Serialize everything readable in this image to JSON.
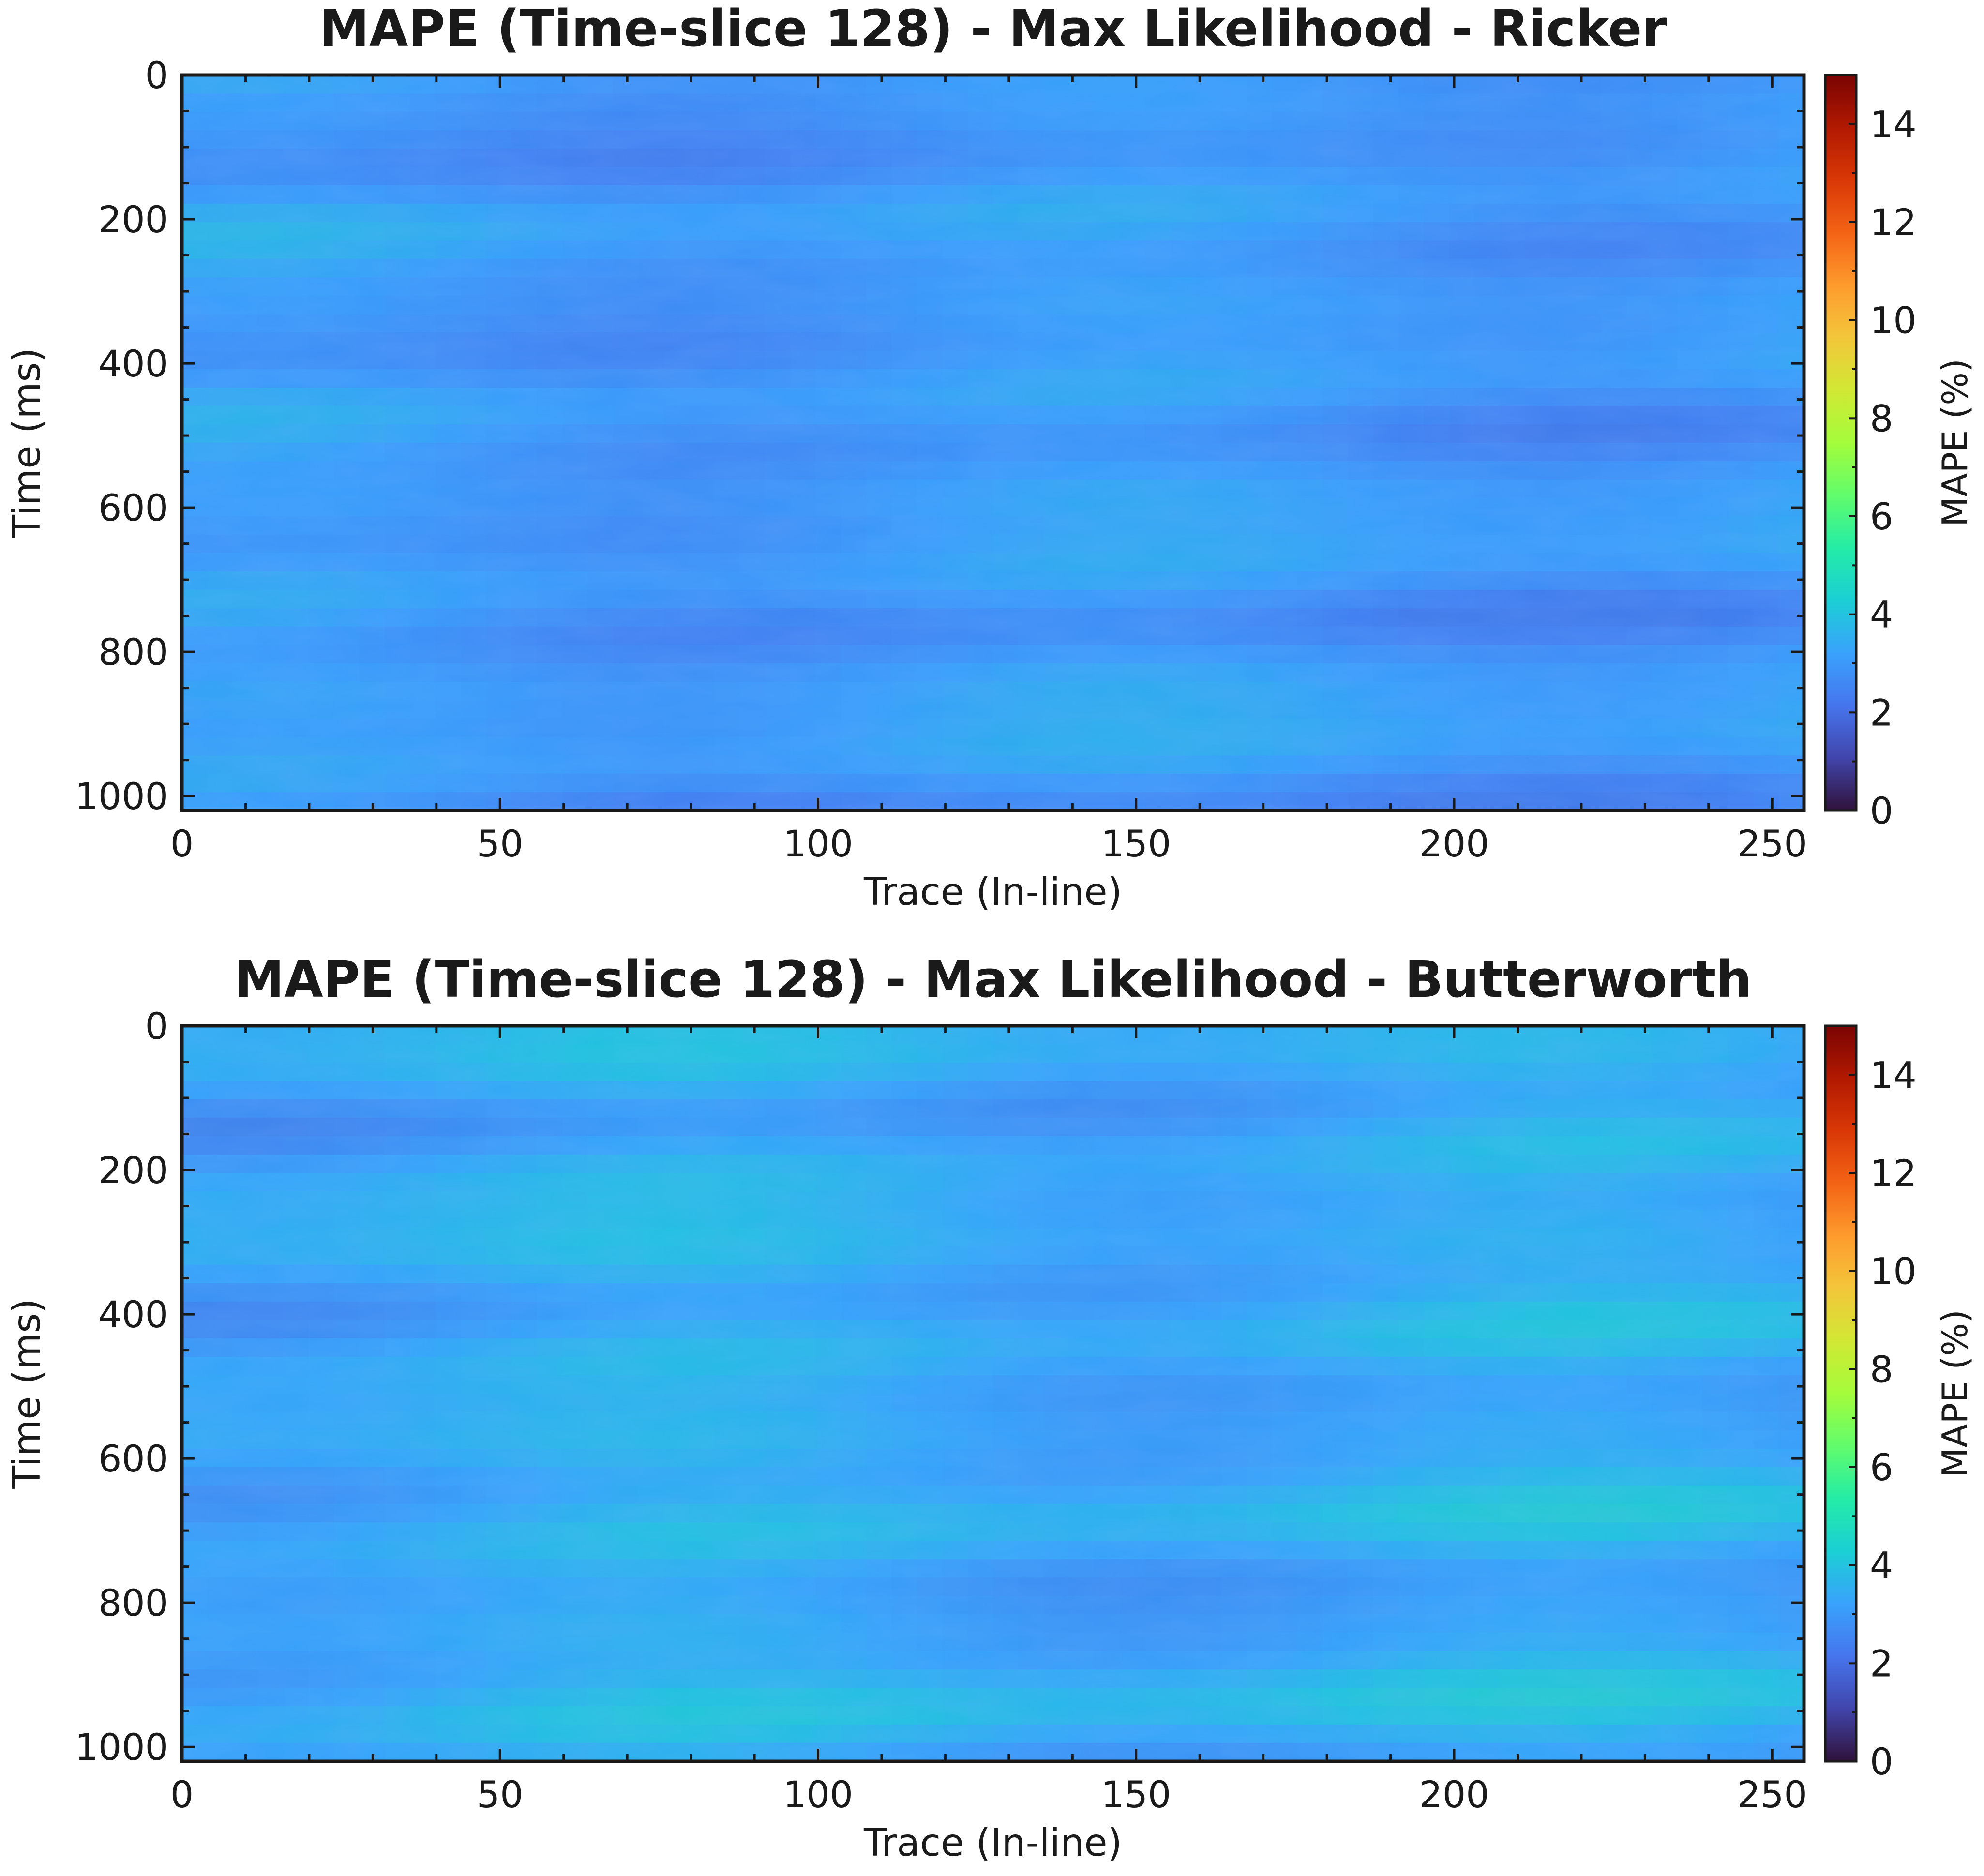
{
  "chart_data": [
    {
      "type": "heatmap",
      "title": "MAPE (Time-slice 128) - Max Likelihood - Ricker",
      "xlabel": "Trace (In-line)",
      "ylabel": "Time (ms)",
      "xlim": [
        0,
        255
      ],
      "ylim": [
        1020,
        0
      ],
      "x_ticks": [
        "0",
        "50",
        "100",
        "150",
        "200",
        "250"
      ],
      "y_ticks": [
        "0",
        "200",
        "400",
        "600",
        "800",
        "1000"
      ],
      "colorbar": {
        "label": "MAPE (%)",
        "range": [
          0,
          15
        ],
        "ticks": [
          "0",
          "2",
          "4",
          "6",
          "8",
          "10",
          "12",
          "14"
        ],
        "colormap": "turbo"
      },
      "value_summary": {
        "min": 2,
        "max": 5,
        "typical": 3
      }
    },
    {
      "type": "heatmap",
      "title": "MAPE (Time-slice 128) - Max Likelihood - Butterworth",
      "xlabel": "Trace (In-line)",
      "ylabel": "Time (ms)",
      "xlim": [
        0,
        255
      ],
      "ylim": [
        1020,
        0
      ],
      "x_ticks": [
        "0",
        "50",
        "100",
        "150",
        "200",
        "250"
      ],
      "y_ticks": [
        "0",
        "200",
        "400",
        "600",
        "800",
        "1000"
      ],
      "colorbar": {
        "label": "MAPE (%)",
        "range": [
          0,
          15
        ],
        "ticks": [
          "0",
          "2",
          "4",
          "6",
          "8",
          "10",
          "12",
          "14"
        ],
        "colormap": "turbo"
      },
      "value_summary": {
        "min": 2,
        "max": 5.5,
        "typical": 3.4
      }
    }
  ],
  "colors": {
    "frame": "#1a1a1a",
    "text": "#1a1a1a",
    "colormap_stops": [
      "#30123b",
      "#4145ab",
      "#4675ed",
      "#39a2fc",
      "#1bcfd4",
      "#24eca6",
      "#61fc6c",
      "#a4fc3b",
      "#d1e834",
      "#f3c63a",
      "#fe9b2d",
      "#f36315",
      "#d93806",
      "#b11901",
      "#7a0403"
    ]
  }
}
